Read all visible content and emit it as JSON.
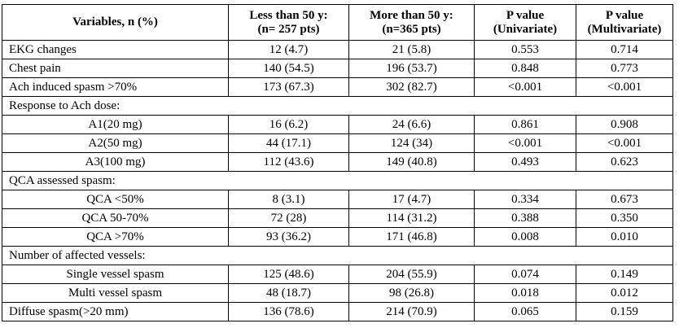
{
  "headers": {
    "variables": "Variables, n (%)",
    "col1_line1": "Less than 50 y:",
    "col1_line2": "(n= 257 pts)",
    "col2_line1": "More than 50 y:",
    "col2_line2": "(n=365 pts)",
    "col3_line1": "P value",
    "col3_line2": "(Univariate)",
    "col4_line1": "P value",
    "col4_line2": "(Multivariate)"
  },
  "rows": {
    "ekg": {
      "label": "EKG changes",
      "less": "12 (4.7)",
      "more": "21 (5.8)",
      "p_uni": "0.553",
      "p_multi": "0.714"
    },
    "chest_pain": {
      "label": "Chest pain",
      "less": "140 (54.5)",
      "more": "196 (53.7)",
      "p_uni": "0.848",
      "p_multi": "0.773"
    },
    "ach_spasm": {
      "label": "Ach induced spasm >70%",
      "less": "173 (67.3)",
      "more": "302 (82.7)",
      "p_uni": "<0.001",
      "p_multi": "<0.001"
    },
    "response_header": {
      "label": "Response to Ach dose:"
    },
    "a1": {
      "label": "A1(20 mg)",
      "less": "16 (6.2)",
      "more": "24 (6.6)",
      "p_uni": "0.861",
      "p_multi": "0.908"
    },
    "a2": {
      "label": "A2(50 mg)",
      "less": "44 (17.1)",
      "more": "124 (34)",
      "p_uni": "<0.001",
      "p_multi": "<0.001"
    },
    "a3": {
      "label": "A3(100 mg)",
      "less": "112 (43.6)",
      "more": "149 (40.8)",
      "p_uni": "0.493",
      "p_multi": "0.623"
    },
    "qca_header": {
      "label": "QCA assessed spasm:"
    },
    "qca_lt50": {
      "label": "QCA <50%",
      "less": "8 (3.1)",
      "more": "17 (4.7)",
      "p_uni": "0.334",
      "p_multi": "0.673"
    },
    "qca_50_70": {
      "label": "QCA 50-70%",
      "less": "72 (28)",
      "more": "114 (31.2)",
      "p_uni": "0.388",
      "p_multi": "0.350"
    },
    "qca_gt70": {
      "label": "QCA >70%",
      "less": "93 (36.2)",
      "more": "171 (46.8)",
      "p_uni": "0.008",
      "p_multi": "0.010"
    },
    "vessels_header": {
      "label": "Number of affected vessels:"
    },
    "single": {
      "label": "Single vessel spasm",
      "less": "125 (48.6)",
      "more": "204 (55.9)",
      "p_uni": "0.074",
      "p_multi": "0.149"
    },
    "multi": {
      "label": "Multi vessel spasm",
      "less": "48 (18.7)",
      "more": "98 (26.8)",
      "p_uni": "0.018",
      "p_multi": "0.012"
    },
    "diffuse": {
      "label": "Diffuse spasm(>20 mm)",
      "less": "136 (78.6)",
      "more": "214 (70.9)",
      "p_uni": "0.065",
      "p_multi": "0.159"
    }
  }
}
